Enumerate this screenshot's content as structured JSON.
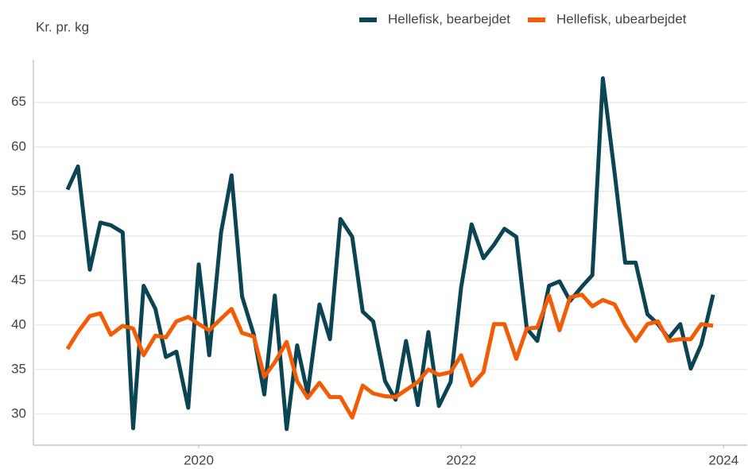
{
  "chart_data": {
    "type": "line",
    "y_label": "Kr. pr. kg",
    "x": [
      2019,
      2019.08,
      2019.17,
      2019.25,
      2019.33,
      2019.42,
      2019.5,
      2019.58,
      2019.67,
      2019.75,
      2019.83,
      2019.92,
      2020,
      2020.08,
      2020.17,
      2020.25,
      2020.33,
      2020.42,
      2020.5,
      2020.58,
      2020.67,
      2020.75,
      2020.83,
      2020.92,
      2021,
      2021.08,
      2021.17,
      2021.25,
      2021.33,
      2021.42,
      2021.5,
      2021.58,
      2021.67,
      2021.75,
      2021.83,
      2021.92,
      2022,
      2022.08,
      2022.17,
      2022.25,
      2022.33,
      2022.42,
      2022.5,
      2022.58,
      2022.67,
      2022.75,
      2022.83,
      2022.92,
      2023,
      2023.08,
      2023.17,
      2023.25,
      2023.33,
      2023.42,
      2023.5,
      2023.58,
      2023.67,
      2023.75,
      2023.83,
      2023.92
    ],
    "series": [
      {
        "name": "Hellefisk, bearbejdet",
        "color": "#0b4554",
        "values": [
          55.2,
          57.8,
          46.2,
          51.5,
          51.2,
          50.4,
          28.4,
          44.4,
          41.8,
          36.4,
          37.0,
          30.7,
          46.8,
          36.6,
          50.4,
          56.8,
          43.2,
          38.9,
          32.2,
          43.3,
          28.3,
          37.7,
          32.3,
          42.3,
          38.4,
          51.9,
          49.9,
          41.5,
          40.4,
          33.7,
          31.6,
          38.2,
          31.0,
          39.2,
          30.9,
          33.6,
          44.2,
          51.3,
          47.5,
          49.0,
          50.8,
          49.9,
          39.6,
          38.2,
          44.4,
          44.9,
          42.7,
          44.3,
          45.6,
          67.7,
          57.0,
          47.0,
          47.0,
          41.2,
          40.1,
          38.5,
          40.1,
          35.1,
          37.8,
          43.4
        ]
      },
      {
        "name": "Hellefisk, ubearbejdet",
        "color": "#f25c05",
        "values": [
          37.3,
          39.2,
          41.0,
          41.3,
          38.9,
          39.9,
          39.6,
          36.6,
          38.8,
          38.6,
          40.4,
          40.9,
          40.1,
          39.4,
          40.7,
          41.8,
          39.1,
          38.7,
          34.2,
          35.8,
          38.1,
          33.7,
          31.8,
          33.5,
          31.9,
          31.9,
          29.6,
          33.2,
          32.3,
          32.0,
          31.9,
          32.7,
          33.6,
          35.0,
          34.4,
          34.7,
          36.6,
          33.2,
          34.7,
          40.1,
          40.1,
          36.2,
          39.6,
          39.7,
          43.3,
          39.4,
          43.1,
          43.4,
          42.1,
          42.8,
          42.3,
          40.0,
          38.2,
          40.1,
          40.4,
          38.2,
          38.4,
          38.4,
          40.1,
          39.9
        ]
      }
    ],
    "xlim": [
      2018.74,
      2024.18
    ],
    "xticks": [
      2020,
      2022,
      2024
    ],
    "ylim": [
      26.5,
      69.8
    ],
    "yticks": [
      30,
      35,
      40,
      45,
      50,
      55,
      60,
      65
    ],
    "grid": true
  }
}
